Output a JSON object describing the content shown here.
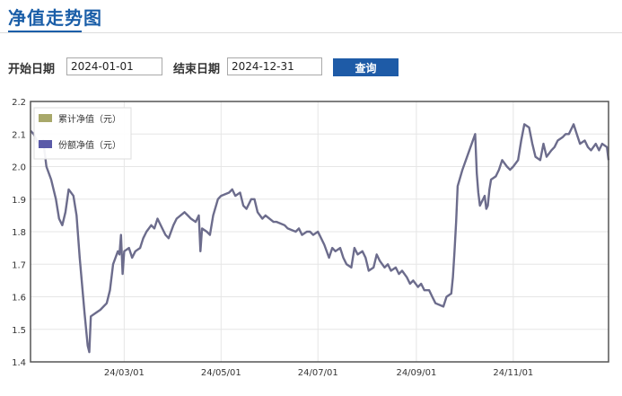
{
  "header": {
    "title": "净值走势图"
  },
  "filters": {
    "start_label": "开始日期",
    "start_value": "2024-01-01",
    "end_label": "结束日期",
    "end_value": "2024-12-31",
    "query_label": "查询"
  },
  "colors": {
    "accent": "#1a5ea8",
    "cumulative_nav": "#a8a86a",
    "unit_nav": "#5a5aa8",
    "line": "#6c6c8c"
  },
  "chart_data": {
    "type": "line",
    "xlabel": "",
    "ylabel": "",
    "ylim": [
      1.4,
      2.2
    ],
    "yticks": [
      1.4,
      1.5,
      1.6,
      1.7,
      1.8,
      1.9,
      2.0,
      2.1,
      2.2
    ],
    "xlim": [
      "2024-01-02",
      "2024-12-31"
    ],
    "xticks": [
      "2024-03-01",
      "2024-05-01",
      "2024-07-01",
      "2024-09-01",
      "2024-11-01"
    ],
    "xtick_labels": [
      "24/03/01",
      "24/05/01",
      "24/07/01",
      "24/09/01",
      "24/11/01"
    ],
    "grid": true,
    "legend_position": "top-left",
    "legend": [
      {
        "label": "累计净值（元）",
        "color": "#a8a86a"
      },
      {
        "label": "份额净值（元）",
        "color": "#5a5aa8"
      }
    ],
    "series": [
      {
        "name": "份额净值（元）",
        "points": [
          [
            "2024-01-02",
            2.11
          ],
          [
            "2024-01-04",
            2.1
          ],
          [
            "2024-01-08",
            2.06
          ],
          [
            "2024-01-10",
            2.08
          ],
          [
            "2024-01-12",
            2.0
          ],
          [
            "2024-01-15",
            1.96
          ],
          [
            "2024-01-18",
            1.9
          ],
          [
            "2024-01-20",
            1.84
          ],
          [
            "2024-01-22",
            1.82
          ],
          [
            "2024-01-24",
            1.86
          ],
          [
            "2024-01-26",
            1.93
          ],
          [
            "2024-01-29",
            1.91
          ],
          [
            "2024-01-31",
            1.85
          ],
          [
            "2024-02-02",
            1.72
          ],
          [
            "2024-02-05",
            1.55
          ],
          [
            "2024-02-07",
            1.45
          ],
          [
            "2024-02-08",
            1.43
          ],
          [
            "2024-02-09",
            1.54
          ],
          [
            "2024-02-12",
            1.55
          ],
          [
            "2024-02-15",
            1.56
          ],
          [
            "2024-02-19",
            1.58
          ],
          [
            "2024-02-21",
            1.62
          ],
          [
            "2024-02-23",
            1.7
          ],
          [
            "2024-02-26",
            1.74
          ],
          [
            "2024-02-27",
            1.73
          ],
          [
            "2024-02-28",
            1.79
          ],
          [
            "2024-02-29",
            1.67
          ],
          [
            "2024-03-01",
            1.74
          ],
          [
            "2024-03-04",
            1.75
          ],
          [
            "2024-03-06",
            1.72
          ],
          [
            "2024-03-08",
            1.74
          ],
          [
            "2024-03-11",
            1.75
          ],
          [
            "2024-03-13",
            1.78
          ],
          [
            "2024-03-15",
            1.8
          ],
          [
            "2024-03-18",
            1.82
          ],
          [
            "2024-03-20",
            1.81
          ],
          [
            "2024-03-22",
            1.84
          ],
          [
            "2024-03-25",
            1.81
          ],
          [
            "2024-03-27",
            1.79
          ],
          [
            "2024-03-29",
            1.78
          ],
          [
            "2024-04-01",
            1.82
          ],
          [
            "2024-04-03",
            1.84
          ],
          [
            "2024-04-08",
            1.86
          ],
          [
            "2024-04-10",
            1.85
          ],
          [
            "2024-04-12",
            1.84
          ],
          [
            "2024-04-15",
            1.83
          ],
          [
            "2024-04-17",
            1.85
          ],
          [
            "2024-04-18",
            1.74
          ],
          [
            "2024-04-19",
            1.81
          ],
          [
            "2024-04-22",
            1.8
          ],
          [
            "2024-04-24",
            1.79
          ],
          [
            "2024-04-26",
            1.85
          ],
          [
            "2024-04-29",
            1.9
          ],
          [
            "2024-05-01",
            1.91
          ],
          [
            "2024-05-06",
            1.92
          ],
          [
            "2024-05-08",
            1.93
          ],
          [
            "2024-05-10",
            1.91
          ],
          [
            "2024-05-13",
            1.92
          ],
          [
            "2024-05-15",
            1.88
          ],
          [
            "2024-05-17",
            1.87
          ],
          [
            "2024-05-20",
            1.9
          ],
          [
            "2024-05-22",
            1.9
          ],
          [
            "2024-05-24",
            1.86
          ],
          [
            "2024-05-27",
            1.84
          ],
          [
            "2024-05-29",
            1.85
          ],
          [
            "2024-06-03",
            1.83
          ],
          [
            "2024-06-05",
            1.83
          ],
          [
            "2024-06-10",
            1.82
          ],
          [
            "2024-06-12",
            1.81
          ],
          [
            "2024-06-17",
            1.8
          ],
          [
            "2024-06-19",
            1.81
          ],
          [
            "2024-06-21",
            1.79
          ],
          [
            "2024-06-24",
            1.8
          ],
          [
            "2024-06-26",
            1.8
          ],
          [
            "2024-06-28",
            1.79
          ],
          [
            "2024-07-01",
            1.8
          ],
          [
            "2024-07-03",
            1.78
          ],
          [
            "2024-07-05",
            1.76
          ],
          [
            "2024-07-08",
            1.72
          ],
          [
            "2024-07-10",
            1.75
          ],
          [
            "2024-07-12",
            1.74
          ],
          [
            "2024-07-15",
            1.75
          ],
          [
            "2024-07-17",
            1.72
          ],
          [
            "2024-07-19",
            1.7
          ],
          [
            "2024-07-22",
            1.69
          ],
          [
            "2024-07-24",
            1.75
          ],
          [
            "2024-07-26",
            1.73
          ],
          [
            "2024-07-29",
            1.74
          ],
          [
            "2024-07-31",
            1.72
          ],
          [
            "2024-08-02",
            1.68
          ],
          [
            "2024-08-05",
            1.69
          ],
          [
            "2024-08-07",
            1.73
          ],
          [
            "2024-08-09",
            1.71
          ],
          [
            "2024-08-12",
            1.69
          ],
          [
            "2024-08-14",
            1.7
          ],
          [
            "2024-08-16",
            1.68
          ],
          [
            "2024-08-19",
            1.69
          ],
          [
            "2024-08-21",
            1.67
          ],
          [
            "2024-08-23",
            1.68
          ],
          [
            "2024-08-26",
            1.66
          ],
          [
            "2024-08-28",
            1.64
          ],
          [
            "2024-08-30",
            1.65
          ],
          [
            "2024-09-02",
            1.63
          ],
          [
            "2024-09-04",
            1.64
          ],
          [
            "2024-09-06",
            1.62
          ],
          [
            "2024-09-09",
            1.62
          ],
          [
            "2024-09-11",
            1.6
          ],
          [
            "2024-09-13",
            1.58
          ],
          [
            "2024-09-18",
            1.57
          ],
          [
            "2024-09-20",
            1.6
          ],
          [
            "2024-09-23",
            1.61
          ],
          [
            "2024-09-24",
            1.66
          ],
          [
            "2024-09-25",
            1.74
          ],
          [
            "2024-09-26",
            1.83
          ],
          [
            "2024-09-27",
            1.94
          ],
          [
            "2024-09-30",
            1.99
          ],
          [
            "2024-10-08",
            2.1
          ],
          [
            "2024-10-09",
            1.98
          ],
          [
            "2024-10-10",
            1.92
          ],
          [
            "2024-10-11",
            1.88
          ],
          [
            "2024-10-14",
            1.91
          ],
          [
            "2024-10-15",
            1.87
          ],
          [
            "2024-10-16",
            1.88
          ],
          [
            "2024-10-17",
            1.93
          ],
          [
            "2024-10-18",
            1.96
          ],
          [
            "2024-10-21",
            1.97
          ],
          [
            "2024-10-23",
            1.99
          ],
          [
            "2024-10-25",
            2.02
          ],
          [
            "2024-10-28",
            2.0
          ],
          [
            "2024-10-30",
            1.99
          ],
          [
            "2024-11-01",
            2.0
          ],
          [
            "2024-11-04",
            2.02
          ],
          [
            "2024-11-06",
            2.08
          ],
          [
            "2024-11-08",
            2.13
          ],
          [
            "2024-11-11",
            2.12
          ],
          [
            "2024-11-13",
            2.07
          ],
          [
            "2024-11-15",
            2.03
          ],
          [
            "2024-11-18",
            2.02
          ],
          [
            "2024-11-20",
            2.07
          ],
          [
            "2024-11-22",
            2.03
          ],
          [
            "2024-11-25",
            2.05
          ],
          [
            "2024-11-27",
            2.06
          ],
          [
            "2024-11-29",
            2.08
          ],
          [
            "2024-12-02",
            2.09
          ],
          [
            "2024-12-04",
            2.1
          ],
          [
            "2024-12-06",
            2.1
          ],
          [
            "2024-12-09",
            2.13
          ],
          [
            "2024-12-11",
            2.1
          ],
          [
            "2024-12-13",
            2.07
          ],
          [
            "2024-12-16",
            2.08
          ],
          [
            "2024-12-18",
            2.06
          ],
          [
            "2024-12-20",
            2.05
          ],
          [
            "2024-12-23",
            2.07
          ],
          [
            "2024-12-25",
            2.05
          ],
          [
            "2024-12-27",
            2.07
          ],
          [
            "2024-12-30",
            2.06
          ],
          [
            "2024-12-31",
            2.02
          ]
        ]
      }
    ]
  }
}
